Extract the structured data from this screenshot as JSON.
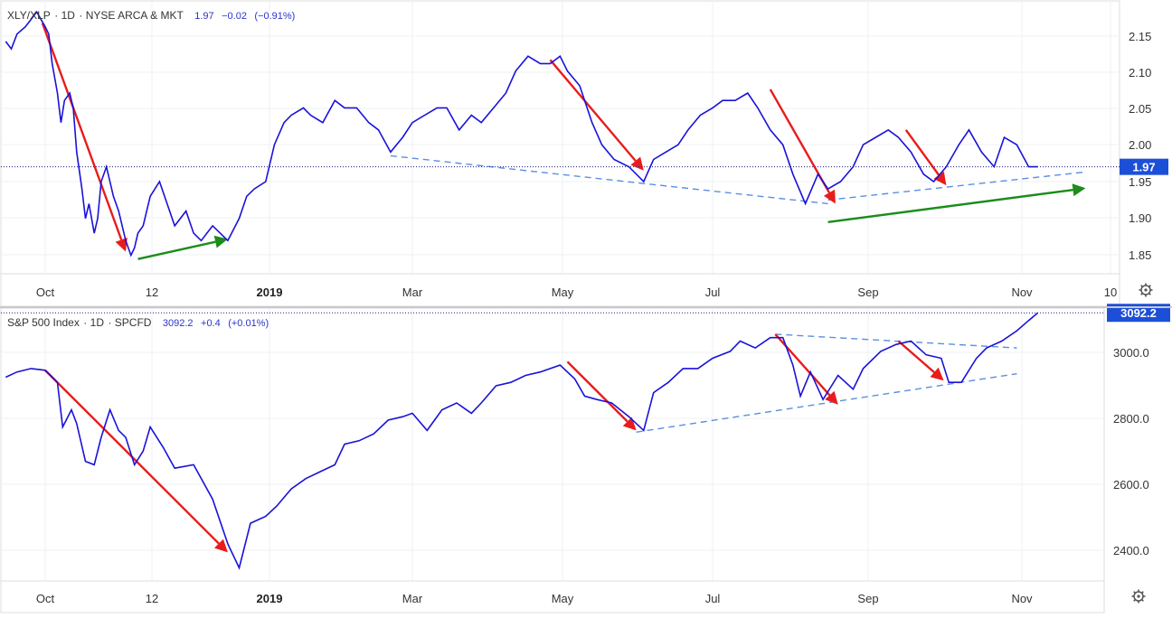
{
  "chart_data": [
    {
      "type": "line",
      "legend": {
        "symbol": "XLY/XLP",
        "interval": "1D",
        "exchange": "NYSE ARCA & MKT",
        "last": "1.97",
        "change": "−0.02",
        "change_pct": "(−0.91%)"
      },
      "x_ticks": [
        {
          "label": "Oct",
          "bold": false
        },
        {
          "label": "12",
          "bold": false
        },
        {
          "label": "2019",
          "bold": true
        },
        {
          "label": "Mar",
          "bold": false
        },
        {
          "label": "May",
          "bold": false
        },
        {
          "label": "Jul",
          "bold": false
        },
        {
          "label": "Sep",
          "bold": false
        },
        {
          "label": "Nov",
          "bold": false
        },
        {
          "label": "10",
          "bold": false
        }
      ],
      "y_ticks": [
        "2.15",
        "2.10",
        "2.05",
        "2.00",
        "1.95",
        "1.90",
        "1.85"
      ],
      "ylim": [
        1.825,
        2.195
      ],
      "last_price_label": "1.97",
      "series": [
        {
          "x": [
            "2018-09-17",
            "2018-09-19",
            "2018-09-21",
            "2018-09-24",
            "2018-09-26",
            "2018-09-28",
            "2018-10-01",
            "2018-10-03",
            "2018-10-05",
            "2018-10-08",
            "2018-10-10",
            "2018-10-12",
            "2018-10-15",
            "2018-10-17",
            "2018-10-19",
            "2018-10-22",
            "2018-10-24",
            "2018-10-26",
            "2018-10-29",
            "2018-10-31",
            "2018-11-02",
            "2018-11-05",
            "2018-11-07",
            "2018-11-09",
            "2018-11-12",
            "2018-11-14",
            "2018-11-16",
            "2018-11-19",
            "2018-11-21",
            "2018-11-23",
            "2018-11-26",
            "2018-11-28",
            "2018-11-30",
            "2018-12-03",
            "2018-12-05",
            "2018-12-07",
            "2018-12-10",
            "2018-12-12",
            "2018-12-14",
            "2018-12-17",
            "2018-12-19",
            "2018-12-21",
            "2018-12-24",
            "2018-12-26",
            "2018-12-28",
            "2018-12-31",
            "2019-01-03",
            "2019-01-07",
            "2019-01-10",
            "2019-01-15",
            "2019-01-18",
            "2019-01-23",
            "2019-01-28",
            "2019-02-01",
            "2019-02-06",
            "2019-02-11",
            "2019-02-15",
            "2019-02-20",
            "2019-02-25",
            "2019-03-01",
            "2019-03-06",
            "2019-03-11",
            "2019-03-15",
            "2019-03-20",
            "2019-03-25",
            "2019-03-29",
            "2019-04-03",
            "2019-04-08",
            "2019-04-12",
            "2019-04-17",
            "2019-04-22",
            "2019-04-26",
            "2019-04-30",
            "2019-05-03",
            "2019-05-08",
            "2019-05-13",
            "2019-05-17",
            "2019-05-22",
            "2019-05-28",
            "2019-06-03",
            "2019-06-07",
            "2019-06-12",
            "2019-06-17",
            "2019-06-21",
            "2019-06-26",
            "2019-07-01",
            "2019-07-05",
            "2019-07-10",
            "2019-07-15",
            "2019-07-19",
            "2019-07-24",
            "2019-07-29",
            "2019-08-02",
            "2019-08-07",
            "2019-08-12",
            "2019-08-16",
            "2019-08-21",
            "2019-08-26",
            "2019-08-30",
            "2019-09-04",
            "2019-09-09",
            "2019-09-13",
            "2019-09-18",
            "2019-09-23",
            "2019-09-27",
            "2019-10-02",
            "2019-10-07",
            "2019-10-11",
            "2019-10-16",
            "2019-10-21",
            "2019-10-25",
            "2019-10-30",
            "2019-11-04",
            "2019-11-08"
          ],
          "y": [
            2.14,
            2.13,
            2.15,
            2.16,
            2.17,
            2.18,
            2.16,
            2.15,
            2.11,
            2.07,
            2.03,
            2.06,
            2.07,
            2.05,
            1.99,
            1.94,
            1.9,
            1.92,
            1.88,
            1.9,
            1.95,
            1.97,
            1.95,
            1.93,
            1.91,
            1.89,
            1.87,
            1.85,
            1.86,
            1.88,
            1.89,
            1.91,
            1.93,
            1.95,
            1.92,
            1.89,
            1.91,
            1.88,
            1.87,
            1.89,
            1.88,
            1.87,
            1.9,
            1.93,
            1.94,
            1.95,
            2.0,
            2.03,
            2.04,
            2.05,
            2.04,
            2.03,
            2.06,
            2.05,
            2.05,
            2.03,
            2.02,
            1.99,
            2.01,
            2.03,
            2.04,
            2.05,
            2.05,
            2.02,
            2.04,
            2.03,
            2.05,
            2.07,
            2.1,
            2.12,
            2.11,
            2.11,
            2.12,
            2.1,
            2.08,
            2.03,
            2.0,
            1.98,
            1.97,
            1.95,
            1.98,
            1.99,
            2.0,
            2.02,
            2.04,
            2.05,
            2.06,
            2.06,
            2.07,
            2.05,
            2.02,
            2.0,
            1.96,
            1.92,
            1.96,
            1.94,
            1.95,
            1.97,
            2.0,
            2.01,
            2.02,
            2.01,
            1.99,
            1.96,
            1.95,
            1.97,
            2.0,
            2.02,
            1.99,
            1.97,
            2.01,
            2.0,
            1.97,
            1.97
          ]
        }
      ],
      "annotations": [
        {
          "kind": "trend-line",
          "color": "#5a8fe0",
          "style": "dashed",
          "from": [
            "2019-02-20",
            1.985
          ],
          "to": [
            "2019-08-16",
            1.92
          ]
        },
        {
          "kind": "trend-line",
          "color": "#5a8fe0",
          "style": "dashed",
          "from": [
            "2019-08-16",
            1.925
          ],
          "to": [
            "2019-11-29",
            1.963
          ]
        },
        {
          "kind": "arrow",
          "color": "#e81c1c",
          "from": [
            "2018-09-30",
            2.165
          ],
          "to": [
            "2018-11-16",
            1.855
          ]
        },
        {
          "kind": "arrow",
          "color": "#e81c1c",
          "from": [
            "2019-04-26",
            2.115
          ],
          "to": [
            "2019-06-03",
            1.965
          ]
        },
        {
          "kind": "arrow",
          "color": "#e81c1c",
          "from": [
            "2019-07-24",
            2.075
          ],
          "to": [
            "2019-08-19",
            1.92
          ]
        },
        {
          "kind": "arrow",
          "color": "#e81c1c",
          "from": [
            "2019-09-16",
            2.02
          ],
          "to": [
            "2019-10-02",
            1.945
          ]
        },
        {
          "kind": "arrow",
          "color": "#1c8c1c",
          "from": [
            "2018-11-23",
            1.845
          ],
          "to": [
            "2018-12-21",
            1.872
          ]
        },
        {
          "kind": "arrow",
          "color": "#1c8c1c",
          "from": [
            "2019-08-16",
            1.895
          ],
          "to": [
            "2019-11-29",
            1.941
          ]
        }
      ]
    },
    {
      "type": "line",
      "legend": {
        "symbol": "S&P 500 Index",
        "interval": "1D",
        "exchange": "SPCFD",
        "last": "3092.2",
        "change": "+0.4",
        "change_pct": "(+0.01%)"
      },
      "x_ticks": [
        {
          "label": "Oct",
          "bold": false
        },
        {
          "label": "12",
          "bold": false
        },
        {
          "label": "2019",
          "bold": true
        },
        {
          "label": "Mar",
          "bold": false
        },
        {
          "label": "May",
          "bold": false
        },
        {
          "label": "Jul",
          "bold": false
        },
        {
          "label": "Sep",
          "bold": false
        },
        {
          "label": "Nov",
          "bold": false
        }
      ],
      "y_ticks": [
        "3000.0",
        "2800.0",
        "2600.0",
        "2400.0"
      ],
      "ylim": [
        2312,
        3106
      ],
      "last_price_label": "3092.2",
      "series": [
        {
          "x": [
            "2018-09-17",
            "2018-09-21",
            "2018-09-26",
            "2018-10-01",
            "2018-10-03",
            "2018-10-08",
            "2018-10-11",
            "2018-10-16",
            "2018-10-19",
            "2018-10-24",
            "2018-10-29",
            "2018-11-02",
            "2018-11-07",
            "2018-11-12",
            "2018-11-16",
            "2018-11-21",
            "2018-11-26",
            "2018-11-30",
            "2018-12-04",
            "2018-12-07",
            "2018-12-12",
            "2018-12-17",
            "2018-12-21",
            "2018-12-24",
            "2018-12-27",
            "2018-12-31",
            "2019-01-04",
            "2019-01-10",
            "2019-01-16",
            "2019-01-22",
            "2019-01-28",
            "2019-02-01",
            "2019-02-07",
            "2019-02-13",
            "2019-02-19",
            "2019-02-25",
            "2019-03-01",
            "2019-03-07",
            "2019-03-13",
            "2019-03-19",
            "2019-03-25",
            "2019-03-29",
            "2019-04-04",
            "2019-04-10",
            "2019-04-16",
            "2019-04-22",
            "2019-04-30",
            "2019-05-06",
            "2019-05-10",
            "2019-05-15",
            "2019-05-21",
            "2019-05-28",
            "2019-06-03",
            "2019-06-07",
            "2019-06-13",
            "2019-06-19",
            "2019-06-25",
            "2019-07-01",
            "2019-07-08",
            "2019-07-12",
            "2019-07-18",
            "2019-07-24",
            "2019-07-29",
            "2019-08-02",
            "2019-08-05",
            "2019-08-09",
            "2019-08-14",
            "2019-08-20",
            "2019-08-26",
            "2019-08-30",
            "2019-09-06",
            "2019-09-12",
            "2019-09-18",
            "2019-09-24",
            "2019-09-30",
            "2019-10-03",
            "2019-10-08",
            "2019-10-14",
            "2019-10-18",
            "2019-10-24",
            "2019-10-30",
            "2019-11-04",
            "2019-11-08"
          ],
          "y": [
            2905,
            2920,
            2930,
            2925,
            2915,
            2890,
            2760,
            2810,
            2770,
            2660,
            2650,
            2730,
            2810,
            2750,
            2730,
            2650,
            2690,
            2760,
            2700,
            2640,
            2650,
            2550,
            2420,
            2350,
            2480,
            2500,
            2530,
            2580,
            2610,
            2630,
            2650,
            2710,
            2720,
            2740,
            2780,
            2790,
            2800,
            2750,
            2810,
            2830,
            2800,
            2830,
            2880,
            2890,
            2910,
            2920,
            2940,
            2900,
            2850,
            2840,
            2830,
            2790,
            2750,
            2860,
            2890,
            2930,
            2930,
            2960,
            2980,
            3010,
            2990,
            3020,
            3020,
            2940,
            2850,
            2920,
            2840,
            2910,
            2870,
            2930,
            2980,
            3000,
            3010,
            2970,
            2960,
            2890,
            2890,
            2960,
            2990,
            3010,
            3040,
            3070,
            3092
          ]
        }
      ],
      "annotations": [
        {
          "kind": "trend-line",
          "color": "#5a8fe0",
          "style": "dashed",
          "from": [
            "2019-05-31",
            2745
          ],
          "to": [
            "2019-10-30",
            2915
          ]
        },
        {
          "kind": "trend-line",
          "color": "#5a8fe0",
          "style": "dashed",
          "from": [
            "2019-07-26",
            3030
          ],
          "to": [
            "2019-10-30",
            2990
          ]
        },
        {
          "kind": "arrow",
          "color": "#e81c1c",
          "from": [
            "2018-10-01",
            2925
          ],
          "to": [
            "2018-12-21",
            2395
          ]
        },
        {
          "kind": "arrow",
          "color": "#e81c1c",
          "from": [
            "2019-05-03",
            2950
          ],
          "to": [
            "2019-05-31",
            2750
          ]
        },
        {
          "kind": "arrow",
          "color": "#e81c1c",
          "from": [
            "2019-07-26",
            3030
          ],
          "to": [
            "2019-08-20",
            2825
          ]
        },
        {
          "kind": "arrow",
          "color": "#e81c1c",
          "from": [
            "2019-09-13",
            3010
          ],
          "to": [
            "2019-10-01",
            2895
          ]
        }
      ]
    }
  ],
  "icons": {
    "settings_top": "gear-icon",
    "settings_bottom": "gear-icon"
  },
  "colors": {
    "series_line": "#1a12d8",
    "trend_line": "#5a8fe0",
    "down_arrow": "#e81c1c",
    "up_arrow": "#1c8c1c",
    "price_tag_bg": "#1c4fd8"
  }
}
